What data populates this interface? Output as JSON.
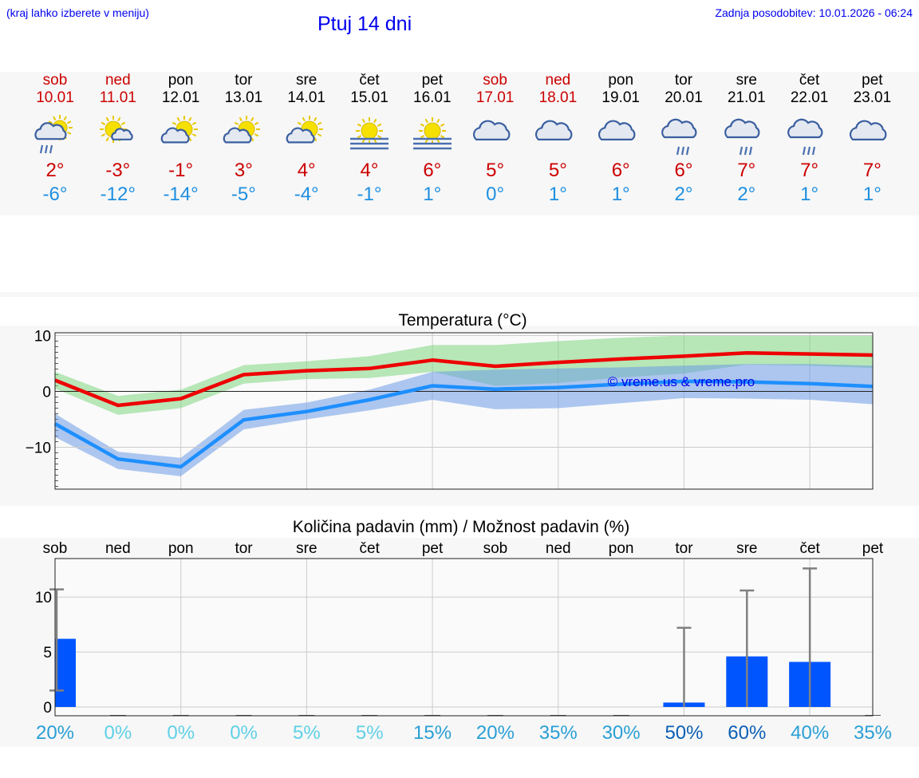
{
  "header": {
    "note": "(kraj lahko izberete v meniju)",
    "title": "Ptuj 14 dni",
    "updated": "Zadnja posodobitev: 10.01.2026 - 06:24"
  },
  "days": [
    {
      "name": "sob",
      "date": "10.01",
      "weekend": true,
      "icon": "sun-cloud-rain-icon",
      "tmax": "2°",
      "tmin": "-6°"
    },
    {
      "name": "ned",
      "date": "11.01",
      "weekend": true,
      "icon": "sun-small-cloud-icon",
      "tmax": "-3°",
      "tmin": "-12°"
    },
    {
      "name": "pon",
      "date": "12.01",
      "weekend": false,
      "icon": "sun-cloud-icon",
      "tmax": "-1°",
      "tmin": "-14°"
    },
    {
      "name": "tor",
      "date": "13.01",
      "weekend": false,
      "icon": "sun-cloud-icon",
      "tmax": "3°",
      "tmin": "-5°"
    },
    {
      "name": "sre",
      "date": "14.01",
      "weekend": false,
      "icon": "sun-cloud-icon",
      "tmax": "4°",
      "tmin": "-4°"
    },
    {
      "name": "čet",
      "date": "15.01",
      "weekend": false,
      "icon": "sun-fog-icon",
      "tmax": "4°",
      "tmin": "-1°"
    },
    {
      "name": "pet",
      "date": "16.01",
      "weekend": false,
      "icon": "sun-fog-icon",
      "tmax": "6°",
      "tmin": "1°"
    },
    {
      "name": "sob",
      "date": "17.01",
      "weekend": true,
      "icon": "cloud-icon",
      "tmax": "5°",
      "tmin": "0°"
    },
    {
      "name": "ned",
      "date": "18.01",
      "weekend": true,
      "icon": "cloud-icon",
      "tmax": "5°",
      "tmin": "1°"
    },
    {
      "name": "pon",
      "date": "19.01",
      "weekend": false,
      "icon": "cloud-icon",
      "tmax": "6°",
      "tmin": "1°"
    },
    {
      "name": "tor",
      "date": "20.01",
      "weekend": false,
      "icon": "cloud-rain-icon",
      "tmax": "6°",
      "tmin": "2°"
    },
    {
      "name": "sre",
      "date": "21.01",
      "weekend": false,
      "icon": "cloud-rain-icon",
      "tmax": "7°",
      "tmin": "2°"
    },
    {
      "name": "čet",
      "date": "22.01",
      "weekend": false,
      "icon": "cloud-rain-icon",
      "tmax": "7°",
      "tmin": "1°"
    },
    {
      "name": "pet",
      "date": "23.01",
      "weekend": false,
      "icon": "cloud-icon",
      "tmax": "7°",
      "tmin": "1°"
    }
  ],
  "chart_data": [
    {
      "type": "line",
      "title": "Temperatura (°C)",
      "xlabel": "",
      "ylabel": "",
      "x": [
        0,
        1,
        2,
        3,
        4,
        5,
        6,
        7,
        8,
        9,
        10,
        11,
        12,
        13
      ],
      "ylim": [
        -17.5,
        10.5
      ],
      "yticks": [
        -10,
        0,
        10
      ],
      "grid": true,
      "watermark": "© vreme.us & vreme.pro",
      "series": [
        {
          "role": "max",
          "color": "#ee0000",
          "values": [
            2,
            -2.5,
            -1.3,
            3,
            3.7,
            4.1,
            5.6,
            4.5,
            5.2,
            5.8,
            6.3,
            6.9,
            6.7,
            6.5
          ],
          "band_low": [
            0.5,
            -4.2,
            -3,
            1.4,
            2.2,
            2.4,
            3.5,
            1,
            1.5,
            2.5,
            3.2,
            4.8,
            4.6,
            4.2
          ],
          "band_high": [
            3.5,
            -0.8,
            0.3,
            4.7,
            5.4,
            6.3,
            8.3,
            8.3,
            9,
            9.6,
            10,
            10,
            10,
            10
          ],
          "band_color": "#7fd67f"
        },
        {
          "role": "min",
          "color": "#1e8fff",
          "values": [
            -5.8,
            -12.1,
            -13.5,
            -5.1,
            -3.6,
            -1.5,
            1,
            0.4,
            0.7,
            1.3,
            1.8,
            1.7,
            1.4,
            0.9
          ],
          "band_low": [
            -8.2,
            -13.9,
            -15.2,
            -6.8,
            -5,
            -3.4,
            -1.5,
            -3.2,
            -3,
            -2.1,
            -1.2,
            -1.3,
            -1.5,
            -2.3
          ],
          "band_high": [
            -4,
            -10.8,
            -11.9,
            -3.3,
            -2,
            0.3,
            3.5,
            3.9,
            4.1,
            4.3,
            4.6,
            4.9,
            4.9,
            4.6
          ],
          "band_color": "#6b9be6"
        }
      ]
    },
    {
      "type": "bar",
      "title": "Količina padavin (mm) / Možnost padavin (%)",
      "categories": [
        "sob",
        "ned",
        "pon",
        "tor",
        "sre",
        "čet",
        "pet",
        "sob",
        "ned",
        "pon",
        "tor",
        "sre",
        "čet",
        "pet"
      ],
      "values": [
        6.2,
        0,
        0,
        0,
        0,
        0,
        0,
        0,
        0,
        0,
        0.4,
        4.6,
        4.1,
        0
      ],
      "err_low": [
        1.5,
        0,
        0,
        0,
        0,
        0,
        0,
        0,
        0,
        0,
        0,
        0,
        0,
        0
      ],
      "err_high": [
        10.7,
        0,
        0,
        0,
        0,
        0,
        0,
        0,
        0,
        0,
        7.2,
        10.6,
        12.6,
        0
      ],
      "probability": [
        "20%",
        "0%",
        "0%",
        "0%",
        "5%",
        "5%",
        "15%",
        "20%",
        "35%",
        "30%",
        "50%",
        "60%",
        "40%",
        "35%"
      ],
      "probability_colors": [
        "#2a9fd6",
        "#5fd0e6",
        "#5fd0e6",
        "#5fd0e6",
        "#5fd0e6",
        "#5fd0e6",
        "#2a9fd6",
        "#2a9fd6",
        "#2a9fd6",
        "#2a9fd6",
        "#0b5fb5",
        "#0b5fb5",
        "#2a9fd6",
        "#2a9fd6"
      ],
      "ylim": [
        -0.8,
        13.5
      ],
      "yticks": [
        0,
        5,
        10
      ],
      "bar_color": "#0055ff",
      "grid": true
    }
  ]
}
